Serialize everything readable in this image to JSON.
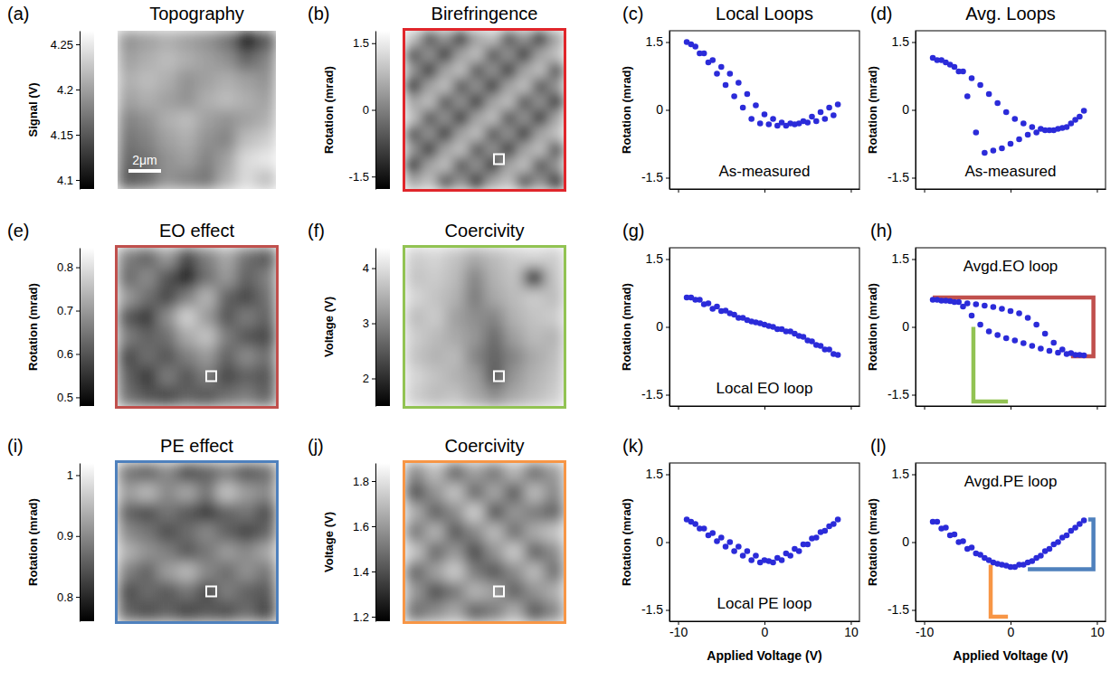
{
  "chart_data": [
    {
      "type": "heatmap",
      "panel": "(a)",
      "title": "Topography",
      "colorbar_label": "Signal (V)",
      "annotation": "2μm",
      "zlim": [
        4.09,
        4.265
      ],
      "zticks": [
        4.1,
        4.15,
        4.2,
        4.25
      ],
      "cells": [
        [
          4.19,
          4.2,
          4.21,
          4.2,
          4.19,
          4.17,
          4.1,
          4.15
        ],
        [
          4.2,
          4.21,
          4.22,
          4.21,
          4.2,
          4.19,
          4.16,
          4.18
        ],
        [
          4.21,
          4.22,
          4.21,
          4.19,
          4.2,
          4.21,
          4.2,
          4.19
        ],
        [
          4.2,
          4.21,
          4.2,
          4.19,
          4.21,
          4.22,
          4.21,
          4.2
        ],
        [
          4.18,
          4.19,
          4.21,
          4.22,
          4.2,
          4.19,
          4.2,
          4.21
        ],
        [
          4.17,
          4.18,
          4.2,
          4.21,
          4.19,
          4.18,
          4.22,
          4.23
        ],
        [
          4.16,
          4.17,
          4.19,
          4.2,
          4.18,
          4.2,
          4.24,
          4.25
        ],
        [
          4.15,
          4.16,
          4.19,
          4.18,
          4.17,
          4.21,
          4.24,
          4.22
        ]
      ]
    },
    {
      "type": "heatmap",
      "panel": "(b)",
      "title": "Birefringence",
      "colorbar_label": "Rotation (mrad)",
      "color": "#e0262b",
      "zlim": [
        -1.78,
        1.78
      ],
      "zticks": [
        -1.5,
        0,
        1.5
      ],
      "cells": [
        [
          0.9,
          -0.6,
          0.3,
          -1.0,
          0.5,
          0.9,
          -0.6,
          0.3,
          -1.0,
          0.5
        ],
        [
          -0.6,
          0.3,
          -1.0,
          0.5,
          0.9,
          -0.6,
          0.3,
          -1.0,
          0.5,
          0.9
        ],
        [
          0.3,
          -1.0,
          0.5,
          0.9,
          -0.6,
          0.3,
          -1.0,
          0.5,
          0.9,
          -0.6
        ],
        [
          -1.0,
          0.5,
          0.9,
          -0.6,
          0.3,
          -1.0,
          0.5,
          0.9,
          -0.6,
          0.3
        ],
        [
          0.5,
          0.9,
          -0.6,
          0.3,
          -1.0,
          0.5,
          0.9,
          -0.6,
          0.3,
          -1.0
        ],
        [
          0.9,
          -0.6,
          0.3,
          -1.0,
          0.5,
          0.9,
          -0.6,
          0.3,
          -1.0,
          0.5
        ],
        [
          -0.6,
          0.3,
          -1.0,
          0.5,
          0.9,
          -0.6,
          0.3,
          -1.0,
          0.5,
          0.9
        ],
        [
          0.3,
          -1.0,
          0.5,
          0.9,
          -0.6,
          0.3,
          -1.0,
          0.5,
          0.9,
          -0.6
        ],
        [
          -1.0,
          0.5,
          0.9,
          -0.6,
          0.3,
          -1.0,
          0.5,
          0.9,
          -0.6,
          0.3
        ],
        [
          0.5,
          0.9,
          -0.6,
          0.3,
          -1.0,
          0.5,
          0.9,
          -0.6,
          0.3,
          -1.0
        ]
      ]
    },
    {
      "type": "scatter",
      "panel": "(c)",
      "title": "Local Loops",
      "annotation": "As-measured",
      "y_label": "Rotation (mrad)",
      "color": "#2b2bd9",
      "marker": "circle",
      "tick_labels": "y",
      "xlim": [
        -11,
        11
      ],
      "ylim": [
        -1.75,
        1.75
      ],
      "xticks": [
        -10,
        0,
        10
      ],
      "yticks": [
        -1.5,
        0,
        1.5
      ],
      "x": [
        -9,
        -8,
        -7,
        -6,
        -5,
        -4,
        -3,
        -2,
        -1,
        0,
        1,
        2,
        3,
        4,
        5,
        6,
        7,
        8,
        8.5,
        7.5,
        6.5,
        5.5,
        4.5,
        3.5,
        2.5,
        1.5,
        0.5,
        -0.5,
        -1.5,
        -2.5,
        -3.5,
        -4.5,
        -5.5,
        -6.5,
        -7.5,
        -8.5
      ],
      "values": [
        1.5,
        1.4,
        1.25,
        1.1,
        0.95,
        0.8,
        0.6,
        0.35,
        0.1,
        -0.1,
        -0.2,
        -0.28,
        -0.3,
        -0.3,
        -0.28,
        -0.25,
        -0.2,
        -0.12,
        0.12,
        0.05,
        -0.05,
        -0.15,
        -0.25,
        -0.32,
        -0.35,
        -0.35,
        -0.32,
        -0.3,
        -0.2,
        0.05,
        0.3,
        0.55,
        0.8,
        1.05,
        1.25,
        1.45
      ]
    },
    {
      "type": "scatter",
      "panel": "(d)",
      "title": "Avg. Loops",
      "annotation": "As-measured",
      "y_label": "Rotation (mrad)",
      "color": "#2b2bd9",
      "marker": "circle",
      "tick_labels": "y",
      "xlim": [
        -11,
        11
      ],
      "ylim": [
        -1.75,
        1.75
      ],
      "xticks": [
        -10,
        0,
        10
      ],
      "yticks": [
        -1.5,
        0,
        1.5
      ],
      "x": [
        -9,
        -8,
        -7,
        -6,
        -5,
        -4,
        -3,
        -2,
        -1,
        0,
        1,
        2,
        3,
        4,
        5,
        6,
        7,
        8,
        8.5,
        7.5,
        6.5,
        5.5,
        4.5,
        3.5,
        2.5,
        1.5,
        0.5,
        -0.5,
        -1.5,
        -2.5,
        -3.5,
        -4.5,
        -5.5,
        -6.5,
        -7.5,
        -8.5
      ],
      "values": [
        1.15,
        1.1,
        1.0,
        0.85,
        0.3,
        -0.5,
        -0.95,
        -0.9,
        -0.85,
        -0.75,
        -0.65,
        -0.55,
        -0.5,
        -0.45,
        -0.45,
        -0.4,
        -0.3,
        -0.15,
        -0.02,
        -0.22,
        -0.38,
        -0.42,
        -0.45,
        -0.42,
        -0.38,
        -0.3,
        -0.2,
        -0.05,
        0.15,
        0.35,
        0.55,
        0.7,
        0.85,
        0.95,
        1.05,
        1.1
      ]
    },
    {
      "type": "heatmap",
      "panel": "(e)",
      "title": "EO effect",
      "colorbar_label": "Rotation (mrad)",
      "color": "#c0504d",
      "zlim": [
        0.48,
        0.845
      ],
      "zticks": [
        0.5,
        0.6,
        0.7,
        0.8
      ],
      "cells": [
        [
          0.66,
          0.62,
          0.7,
          0.58,
          0.66,
          0.72,
          0.64,
          0.6
        ],
        [
          0.63,
          0.68,
          0.6,
          0.52,
          0.64,
          0.7,
          0.62,
          0.66
        ],
        [
          0.7,
          0.64,
          0.58,
          0.66,
          0.74,
          0.62,
          0.58,
          0.64
        ],
        [
          0.6,
          0.56,
          0.68,
          0.78,
          0.7,
          0.6,
          0.66,
          0.62
        ],
        [
          0.66,
          0.62,
          0.64,
          0.72,
          0.76,
          0.66,
          0.6,
          0.58
        ],
        [
          0.58,
          0.64,
          0.6,
          0.66,
          0.7,
          0.62,
          0.68,
          0.64
        ],
        [
          0.62,
          0.56,
          0.66,
          0.6,
          0.66,
          0.58,
          0.62,
          0.6
        ],
        [
          0.64,
          0.6,
          0.58,
          0.62,
          0.6,
          0.64,
          0.66,
          0.62
        ]
      ]
    },
    {
      "type": "heatmap",
      "panel": "(f)",
      "title": "Coercivity",
      "colorbar_label": "Voltage (V)",
      "color": "#92c353",
      "zlim": [
        1.5,
        4.37
      ],
      "zticks": [
        2,
        3,
        4
      ],
      "cells": [
        [
          3.8,
          3.9,
          3.7,
          3.4,
          3.6,
          3.8,
          3.9,
          3.8
        ],
        [
          3.7,
          3.8,
          3.6,
          3.0,
          3.5,
          3.7,
          1.5,
          3.7
        ],
        [
          3.9,
          3.7,
          3.5,
          2.9,
          3.4,
          3.6,
          3.8,
          3.6
        ],
        [
          3.6,
          3.8,
          3.3,
          3.1,
          3.0,
          3.5,
          3.7,
          3.8
        ],
        [
          3.8,
          3.6,
          3.4,
          3.2,
          2.7,
          3.3,
          3.6,
          3.5
        ],
        [
          3.7,
          3.5,
          3.6,
          3.0,
          2.6,
          3.0,
          3.4,
          3.6
        ],
        [
          3.9,
          3.7,
          3.5,
          3.3,
          2.5,
          3.2,
          3.5,
          3.7
        ],
        [
          3.8,
          3.6,
          3.7,
          3.4,
          3.1,
          3.4,
          3.6,
          3.8
        ]
      ]
    },
    {
      "type": "scatter",
      "panel": "(g)",
      "annotation": "Local EO loop",
      "y_label": "Rotation (mrad)",
      "color": "#2b2bd9",
      "marker": "circle",
      "tick_labels": "y",
      "xlim": [
        -11,
        11
      ],
      "ylim": [
        -1.75,
        1.75
      ],
      "xticks": [
        -10,
        0,
        10
      ],
      "yticks": [
        -1.5,
        0,
        1.5
      ],
      "x": [
        -9,
        -8,
        -7,
        -6,
        -5,
        -4,
        -3,
        -2,
        -1,
        0,
        1,
        2,
        3,
        4,
        5,
        6,
        7,
        8,
        8.5,
        7.5,
        6.5,
        5.5,
        4.5,
        3.5,
        2.5,
        1.5,
        0.5,
        -0.5,
        -1.5,
        -2.5,
        -3.5,
        -4.5,
        -5.5,
        -6.5,
        -7.5,
        -8.5
      ],
      "values": [
        0.65,
        0.6,
        0.5,
        0.4,
        0.35,
        0.3,
        0.2,
        0.15,
        0.1,
        0.05,
        0.0,
        -0.05,
        -0.1,
        -0.2,
        -0.3,
        -0.4,
        -0.5,
        -0.6,
        -0.62,
        -0.5,
        -0.42,
        -0.32,
        -0.22,
        -0.15,
        -0.1,
        -0.05,
        0.02,
        0.08,
        0.12,
        0.2,
        0.27,
        0.36,
        0.45,
        0.52,
        0.6,
        0.65
      ]
    },
    {
      "type": "scatter",
      "panel": "(h)",
      "annotation": "Avgd.EO loop",
      "y_label": "Rotation (mrad)",
      "color": "#2b2bd9",
      "marker": "circle",
      "tick_labels": "y",
      "xlim": [
        -11,
        11
      ],
      "ylim": [
        -1.75,
        1.75
      ],
      "xticks": [
        -10,
        0,
        10
      ],
      "yticks": [
        -1.5,
        0,
        1.5
      ],
      "x": [
        -9,
        -8,
        -7,
        -6,
        -5,
        -4,
        -3,
        -2,
        -1,
        0,
        1,
        2,
        3,
        4,
        5,
        6,
        7,
        8,
        8.5,
        7.5,
        6.5,
        5.5,
        4.5,
        3.5,
        2.5,
        1.5,
        0.5,
        -0.5,
        -1.5,
        -2.5,
        -3.5,
        -4.5,
        -5.5,
        -6.5,
        -7.5,
        -8.5
      ],
      "values": [
        0.6,
        0.58,
        0.57,
        0.55,
        0.52,
        0.5,
        0.47,
        0.44,
        0.4,
        0.35,
        0.3,
        0.2,
        0.05,
        -0.15,
        -0.35,
        -0.5,
        -0.58,
        -0.62,
        -0.63,
        -0.62,
        -0.6,
        -0.57,
        -0.53,
        -0.48,
        -0.42,
        -0.36,
        -0.3,
        -0.25,
        -0.18,
        -0.1,
        0.05,
        0.25,
        0.45,
        0.55,
        0.58,
        0.6
      ],
      "brackets": [
        {
          "color": "#c0504d",
          "points": [
            [
              -9,
              0.65
            ],
            [
              9.6,
              0.65
            ],
            [
              9.6,
              -0.65
            ],
            [
              7,
              -0.65
            ]
          ]
        },
        {
          "color": "#92c353",
          "points": [
            [
              -4.3,
              0
            ],
            [
              -4.3,
              -1.65
            ],
            [
              -0.3,
              -1.65
            ]
          ]
        }
      ]
    },
    {
      "type": "heatmap",
      "panel": "(i)",
      "title": "PE effect",
      "colorbar_label": "Rotation (mrad)",
      "color": "#4f81bd",
      "zlim": [
        0.76,
        1.02
      ],
      "zticks": [
        0.8,
        0.9,
        1
      ],
      "cells": [
        [
          0.88,
          0.86,
          0.9,
          0.84,
          0.86,
          0.89,
          0.85,
          0.87
        ],
        [
          0.92,
          0.95,
          0.9,
          0.93,
          0.88,
          0.96,
          0.92,
          0.9
        ],
        [
          0.86,
          0.84,
          0.88,
          0.85,
          0.82,
          0.86,
          0.88,
          0.84
        ],
        [
          0.9,
          0.88,
          0.84,
          0.87,
          0.9,
          0.86,
          0.83,
          0.86
        ],
        [
          0.94,
          0.91,
          0.89,
          0.85,
          0.88,
          0.92,
          0.9,
          0.93
        ],
        [
          0.89,
          0.86,
          0.92,
          0.95,
          0.9,
          0.87,
          0.91,
          0.88
        ],
        [
          0.84,
          0.87,
          0.85,
          0.88,
          0.84,
          0.89,
          0.86,
          0.85
        ],
        [
          0.86,
          0.84,
          0.86,
          0.83,
          0.85,
          0.84,
          0.87,
          0.83
        ]
      ]
    },
    {
      "type": "heatmap",
      "panel": "(j)",
      "title": "Coercivity",
      "colorbar_label": "Voltage (V)",
      "color": "#f79646",
      "zlim": [
        1.18,
        1.88
      ],
      "zticks": [
        1.2,
        1.4,
        1.6,
        1.8
      ],
      "cells": [
        [
          1.55,
          1.7,
          1.45,
          1.62,
          1.5,
          1.68,
          1.48,
          1.6
        ],
        [
          1.4,
          1.58,
          1.72,
          1.46,
          1.64,
          1.42,
          1.7,
          1.55
        ],
        [
          1.66,
          1.44,
          1.56,
          1.75,
          1.4,
          1.6,
          1.52,
          1.45
        ],
        [
          1.5,
          1.68,
          1.42,
          1.55,
          1.7,
          1.48,
          1.65,
          1.72
        ],
        [
          1.72,
          1.46,
          1.6,
          1.38,
          1.58,
          1.74,
          1.44,
          1.56
        ],
        [
          1.45,
          1.62,
          1.74,
          1.52,
          1.42,
          1.56,
          1.7,
          1.48
        ],
        [
          1.6,
          1.4,
          1.5,
          1.68,
          1.62,
          1.44,
          1.58,
          1.66
        ],
        [
          1.48,
          1.56,
          1.64,
          1.44,
          1.52,
          1.66,
          1.42,
          1.54
        ]
      ]
    },
    {
      "type": "scatter",
      "panel": "(k)",
      "annotation": "Local PE loop",
      "y_label": "Rotation (mrad)",
      "x_label": "Applied Voltage (V)",
      "color": "#2b2bd9",
      "marker": "circle",
      "xlim": [
        -11,
        11
      ],
      "ylim": [
        -1.75,
        1.75
      ],
      "xticks": [
        -10,
        0,
        10
      ],
      "yticks": [
        -1.5,
        0,
        1.5
      ],
      "x": [
        -9,
        -8,
        -7,
        -6,
        -5,
        -4,
        -3,
        -2,
        -1,
        0,
        1,
        2,
        3,
        4,
        5,
        6,
        7,
        8,
        8.5,
        7.5,
        6.5,
        5.5,
        4.5,
        3.5,
        2.5,
        1.5,
        0.5,
        -0.5,
        -1.5,
        -2.5,
        -3.5,
        -4.5,
        -5.5,
        -6.5,
        -7.5,
        -8.5
      ],
      "values": [
        0.5,
        0.4,
        0.3,
        0.2,
        0.1,
        0.0,
        -0.1,
        -0.2,
        -0.3,
        -0.4,
        -0.45,
        -0.4,
        -0.3,
        -0.2,
        -0.05,
        0.1,
        0.25,
        0.4,
        0.5,
        0.35,
        0.22,
        0.08,
        -0.05,
        -0.15,
        -0.25,
        -0.35,
        -0.42,
        -0.45,
        -0.4,
        -0.3,
        -0.2,
        -0.1,
        0.02,
        0.15,
        0.3,
        0.45
      ]
    },
    {
      "type": "scatter",
      "panel": "(l)",
      "annotation": "Avgd.PE loop",
      "y_label": "Rotation (mrad)",
      "x_label": "Applied Voltage (V)",
      "color": "#2b2bd9",
      "marker": "circle",
      "xlim": [
        -11,
        11
      ],
      "ylim": [
        -1.75,
        1.75
      ],
      "xticks": [
        -10,
        0,
        10
      ],
      "yticks": [
        -1.5,
        0,
        1.5
      ],
      "x": [
        -9,
        -8,
        -7,
        -6,
        -5,
        -4,
        -3,
        -2,
        -1,
        0,
        1,
        2,
        3,
        4,
        5,
        6,
        7,
        8,
        8.5,
        7.5,
        6.5,
        5.5,
        4.5,
        3.5,
        2.5,
        1.5,
        0.5,
        -0.5,
        -1.5,
        -2.5,
        -3.5,
        -4.5,
        -5.5,
        -6.5,
        -7.5,
        -8.5
      ],
      "values": [
        0.45,
        0.3,
        0.15,
        0.0,
        -0.15,
        -0.25,
        -0.35,
        -0.45,
        -0.5,
        -0.55,
        -0.5,
        -0.45,
        -0.35,
        -0.2,
        -0.05,
        0.1,
        0.25,
        0.4,
        0.48,
        0.32,
        0.15,
        0.0,
        -0.15,
        -0.3,
        -0.42,
        -0.5,
        -0.55,
        -0.52,
        -0.48,
        -0.4,
        -0.28,
        -0.12,
        0.02,
        0.17,
        0.32,
        0.45
      ],
      "brackets": [
        {
          "color": "#4f81bd",
          "points": [
            [
              9,
              0.5
            ],
            [
              9.6,
              0.5
            ],
            [
              9.6,
              -0.6
            ],
            [
              2,
              -0.6
            ]
          ]
        },
        {
          "color": "#f79646",
          "points": [
            [
              -2.3,
              -0.5
            ],
            [
              -2.3,
              -1.65
            ],
            [
              -0.3,
              -1.65
            ]
          ]
        }
      ]
    }
  ]
}
